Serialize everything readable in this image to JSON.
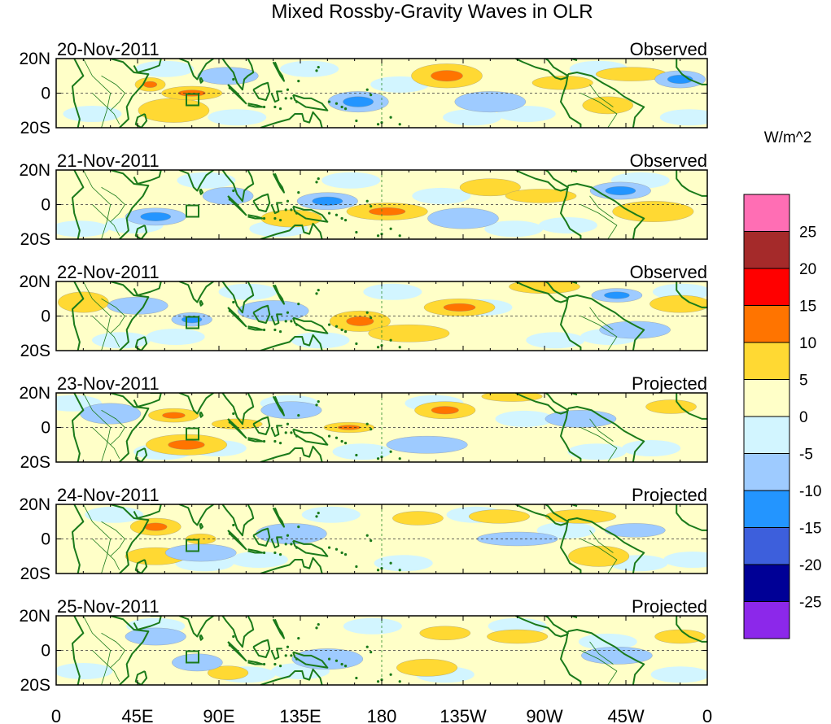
{
  "chart_data": {
    "type": "heatmap",
    "title": "Mixed Rossby-Gravity Waves in OLR",
    "units": "W/m^2",
    "x_ticks": [
      "0",
      "45E",
      "90E",
      "135E",
      "180",
      "135W",
      "90W",
      "45W",
      "0"
    ],
    "x_tick_lon": [
      0,
      45,
      90,
      135,
      180,
      225,
      270,
      315,
      360
    ],
    "y_ticks": [
      "20N",
      "0",
      "20S"
    ],
    "ylim": [
      -20,
      20
    ],
    "xlim": [
      0,
      360
    ],
    "colorbar": {
      "levels": [
        "25",
        "20",
        "15",
        "10",
        "5",
        "0",
        "-5",
        "-10",
        "-15",
        "-20",
        "-25"
      ],
      "colors": [
        "#ff6eb4",
        "#a52a2a",
        "#ff0000",
        "#ff7400",
        "#ffd933",
        "#ffffc8",
        "#d2f5ff",
        "#9ecbff",
        "#2395ff",
        "#3d5fdc",
        "#000096",
        "#8c28ea"
      ]
    },
    "panels": [
      {
        "date": "20-Nov-2011",
        "label": "Observed",
        "blobs": [
          {
            "lon": 216,
            "lat": 10,
            "rx": 14,
            "ry": 7,
            "val": 11
          },
          {
            "lon": 52,
            "lat": 5,
            "rx": 6,
            "ry": 4,
            "val": 12
          },
          {
            "lon": 318,
            "lat": 11,
            "rx": 14,
            "ry": 4,
            "val": 9
          },
          {
            "lon": 65,
            "lat": -10,
            "rx": 14,
            "ry": 7,
            "val": 7
          },
          {
            "lon": 75,
            "lat": 0,
            "rx": 12,
            "ry": 4,
            "val": 11
          },
          {
            "lon": 167,
            "lat": -5,
            "rx": 12,
            "ry": 6,
            "val": -12
          },
          {
            "lon": 95,
            "lat": 10,
            "rx": 12,
            "ry": 5,
            "val": -7
          },
          {
            "lon": 345,
            "lat": 8,
            "rx": 10,
            "ry": 5,
            "val": -11
          },
          {
            "lon": 240,
            "lat": -5,
            "rx": 14,
            "ry": 6,
            "val": -6
          },
          {
            "lon": 305,
            "lat": -7,
            "rx": 10,
            "ry": 5,
            "val": 6
          },
          {
            "lon": 280,
            "lat": 6,
            "rx": 12,
            "ry": 4,
            "val": 7
          }
        ]
      },
      {
        "date": "21-Nov-2011",
        "label": "Observed",
        "blobs": [
          {
            "lon": 183,
            "lat": -4,
            "rx": 16,
            "ry": 5,
            "val": 11
          },
          {
            "lon": 150,
            "lat": 2,
            "rx": 12,
            "ry": 5,
            "val": -12
          },
          {
            "lon": 55,
            "lat": -7,
            "rx": 12,
            "ry": 5,
            "val": -12
          },
          {
            "lon": 240,
            "lat": 10,
            "rx": 12,
            "ry": 5,
            "val": 8
          },
          {
            "lon": 268,
            "lat": 5,
            "rx": 14,
            "ry": 4,
            "val": 9
          },
          {
            "lon": 312,
            "lat": 8,
            "rx": 12,
            "ry": 5,
            "val": -12
          },
          {
            "lon": 330,
            "lat": -4,
            "rx": 16,
            "ry": 6,
            "val": 6
          },
          {
            "lon": 130,
            "lat": -8,
            "rx": 12,
            "ry": 5,
            "val": 6
          },
          {
            "lon": 95,
            "lat": 5,
            "rx": 10,
            "ry": 5,
            "val": -7
          },
          {
            "lon": 225,
            "lat": -8,
            "rx": 14,
            "ry": 6,
            "val": -6
          }
        ]
      },
      {
        "date": "22-Nov-2011",
        "label": "Observed",
        "blobs": [
          {
            "lon": 168,
            "lat": -3,
            "rx": 12,
            "ry": 6,
            "val": 12
          },
          {
            "lon": 223,
            "lat": 5,
            "rx": 14,
            "ry": 5,
            "val": 11
          },
          {
            "lon": 270,
            "lat": 17,
            "rx": 14,
            "ry": 4,
            "val": 9
          },
          {
            "lon": 345,
            "lat": 7,
            "rx": 12,
            "ry": 5,
            "val": 8
          },
          {
            "lon": 310,
            "lat": 12,
            "rx": 10,
            "ry": 4,
            "val": -11
          },
          {
            "lon": 45,
            "lat": 6,
            "rx": 12,
            "ry": 5,
            "val": -9
          },
          {
            "lon": 75,
            "lat": -2,
            "rx": 8,
            "ry": 4,
            "val": -12
          },
          {
            "lon": 195,
            "lat": -10,
            "rx": 16,
            "ry": 5,
            "val": 7
          },
          {
            "lon": 15,
            "lat": 8,
            "rx": 10,
            "ry": 6,
            "val": 7
          },
          {
            "lon": 320,
            "lat": -8,
            "rx": 14,
            "ry": 5,
            "val": -7
          },
          {
            "lon": 120,
            "lat": 3,
            "rx": 14,
            "ry": 6,
            "val": -6
          }
        ]
      },
      {
        "date": "23-Nov-2011",
        "label": "Projected",
        "blobs": [
          {
            "lon": 72,
            "lat": -10,
            "rx": 16,
            "ry": 6,
            "val": 11
          },
          {
            "lon": 65,
            "lat": 7,
            "rx": 10,
            "ry": 4,
            "val": 11
          },
          {
            "lon": 162,
            "lat": 0,
            "rx": 10,
            "ry": 3,
            "val": 11
          },
          {
            "lon": 215,
            "lat": 10,
            "rx": 12,
            "ry": 5,
            "val": 11
          },
          {
            "lon": 252,
            "lat": 18,
            "rx": 12,
            "ry": 3,
            "val": 7
          },
          {
            "lon": 100,
            "lat": 2,
            "rx": 10,
            "ry": 3,
            "val": 6
          },
          {
            "lon": 130,
            "lat": 10,
            "rx": 12,
            "ry": 5,
            "val": -6
          },
          {
            "lon": 205,
            "lat": -10,
            "rx": 16,
            "ry": 5,
            "val": -7
          },
          {
            "lon": 290,
            "lat": 5,
            "rx": 14,
            "ry": 5,
            "val": -6
          },
          {
            "lon": 340,
            "lat": 12,
            "rx": 10,
            "ry": 4,
            "val": 6
          },
          {
            "lon": 30,
            "lat": 8,
            "rx": 12,
            "ry": 6,
            "val": -7
          }
        ]
      },
      {
        "date": "24-Nov-2011",
        "label": "Projected",
        "blobs": [
          {
            "lon": 55,
            "lat": 7,
            "rx": 10,
            "ry": 5,
            "val": 12
          },
          {
            "lon": 55,
            "lat": -10,
            "rx": 12,
            "ry": 5,
            "val": 7
          },
          {
            "lon": 80,
            "lat": 0,
            "rx": 6,
            "ry": 3,
            "val": 7
          },
          {
            "lon": 200,
            "lat": 12,
            "rx": 10,
            "ry": 4,
            "val": 7
          },
          {
            "lon": 245,
            "lat": 13,
            "rx": 12,
            "ry": 4,
            "val": 6
          },
          {
            "lon": 290,
            "lat": 13,
            "rx": 14,
            "ry": 4,
            "val": 6
          },
          {
            "lon": 300,
            "lat": -10,
            "rx": 12,
            "ry": 6,
            "val": 7
          },
          {
            "lon": 80,
            "lat": -8,
            "rx": 14,
            "ry": 5,
            "val": -7
          },
          {
            "lon": 130,
            "lat": 3,
            "rx": 14,
            "ry": 6,
            "val": -6
          },
          {
            "lon": 255,
            "lat": 0,
            "rx": 16,
            "ry": 4,
            "val": -6
          },
          {
            "lon": 320,
            "lat": 5,
            "rx": 12,
            "ry": 4,
            "val": -7
          }
        ]
      },
      {
        "date": "25-Nov-2011",
        "label": "Projected",
        "blobs": [
          {
            "lon": 215,
            "lat": 10,
            "rx": 10,
            "ry": 4,
            "val": 7
          },
          {
            "lon": 205,
            "lat": -10,
            "rx": 12,
            "ry": 5,
            "val": 7
          },
          {
            "lon": 95,
            "lat": -13,
            "rx": 8,
            "ry": 4,
            "val": 6
          },
          {
            "lon": 55,
            "lat": 8,
            "rx": 12,
            "ry": 5,
            "val": -7
          },
          {
            "lon": 78,
            "lat": -7,
            "rx": 10,
            "ry": 5,
            "val": -7
          },
          {
            "lon": 150,
            "lat": -5,
            "rx": 14,
            "ry": 6,
            "val": -6
          },
          {
            "lon": 310,
            "lat": -3,
            "rx": 14,
            "ry": 5,
            "val": -6
          },
          {
            "lon": 255,
            "lat": 8,
            "rx": 12,
            "ry": 4,
            "val": 6
          },
          {
            "lon": 345,
            "lat": 8,
            "rx": 10,
            "ry": 4,
            "val": 6
          }
        ]
      }
    ]
  }
}
